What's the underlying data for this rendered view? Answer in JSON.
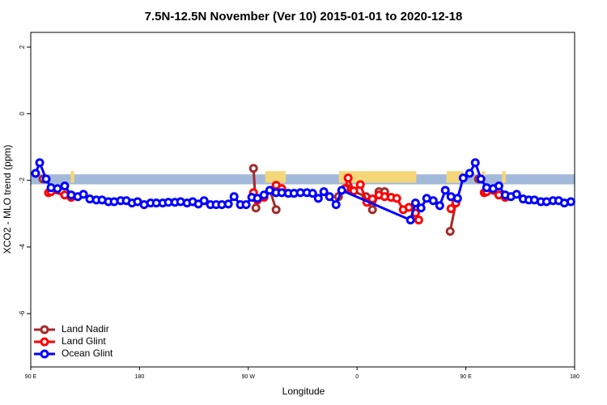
{
  "chart_data": {
    "type": "line",
    "title": "7.5N-12.5N November (Ver 10)   2015-01-01 to 2020-12-18",
    "xlabel": "Longitude",
    "ylabel": "XCO2 - MLO trend (ppm)",
    "xlim": [
      90,
      540
    ],
    "xticks": [
      {
        "value": 90,
        "label": "90 E"
      },
      180,
      {
        "value": 270,
        "label": "90 W"
      },
      {
        "value": 360,
        "label": "0"
      },
      {
        "value": 450,
        "label": "90 E"
      },
      {
        "value": 540,
        "label": "180"
      }
    ],
    "ylim": [
      -7.6,
      2.44
    ],
    "yticks": [
      2,
      0,
      -2,
      -4,
      -6
    ],
    "legend": "lower left",
    "band": {
      "range": [
        -2.12,
        -1.82
      ],
      "color": "#a3b9d9"
    },
    "highlights": {
      "color": "#f5d77a",
      "ranges": [
        [
          123,
          126
        ],
        [
          284,
          301
        ],
        [
          345,
          409
        ],
        [
          434,
          448
        ],
        [
          463,
          466
        ],
        [
          480,
          483
        ]
      ]
    },
    "series": [
      {
        "name": "Land Nadir",
        "color": "#a52a2a",
        "x": [
          100.1,
          null,
          274.3,
          276.3,
          null,
          288.0,
          293.0,
          null,
          344.6,
          352.0,
          367.4,
          372.7,
          378.1,
          382.8,
          null,
          437.0,
          441.7,
          null,
          460.5
        ],
        "values": [
          -1.96,
          null,
          -1.64,
          -2.83,
          null,
          -2.3,
          -2.88,
          null,
          -2.49,
          -2.25,
          -2.49,
          -2.88,
          -2.34,
          -2.34,
          null,
          -3.53,
          -2.68,
          null,
          -1.96
        ]
      },
      {
        "name": "Land Glint",
        "color": "#ff0000",
        "x": [
          104.7,
          106.8,
          118.1,
          123.5,
          null,
          274.3,
          277.6,
          283.0,
          293.0,
          297.7,
          null,
          349.9,
          352.6,
          357.3,
          362.7,
          368.1,
          372.7,
          378.1,
          382.8,
          388.2,
          392.8,
          398.2,
          402.9,
          408.3,
          411.0,
          null,
          437.7,
          441.7,
          null,
          465.2,
          467.2,
          477.3,
          482.6
        ],
        "values": [
          -2.37,
          -2.34,
          -2.44,
          -2.51,
          null,
          -2.37,
          -2.59,
          -2.51,
          -2.15,
          -2.25,
          null,
          -2.25,
          -1.93,
          -2.32,
          -2.13,
          -2.66,
          -2.56,
          -2.44,
          -2.49,
          -2.51,
          -2.54,
          -2.88,
          -2.81,
          -2.98,
          -3.19,
          null,
          -2.85,
          -2.68,
          null,
          -2.37,
          -2.34,
          -2.44,
          -2.51
        ]
      },
      {
        "name": "Ocean Glint",
        "color": "#0000ff",
        "x": [
          94.0,
          97.4,
          102.7,
          106.8,
          112.1,
          118.1,
          123.5,
          128.9,
          133.6,
          138.9,
          144.3,
          149.0,
          154.3,
          159.0,
          164.4,
          169.1,
          173.8,
          178.4,
          183.8,
          189.2,
          193.9,
          199.2,
          203.9,
          209.3,
          214.0,
          219.3,
          224.0,
          228.7,
          233.4,
          238.7,
          243.4,
          248.1,
          253.5,
          258.2,
          263.5,
          268.2,
          272.9,
          277.6,
          283.0,
          287.7,
          293.0,
          297.7,
          303.1,
          307.8,
          313.1,
          318.5,
          323.2,
          327.9,
          332.5,
          337.2,
          342.6,
          347.3,
          404.2,
          408.3,
          412.9,
          417.6,
          423.0,
          428.4,
          433.0,
          437.7,
          443.1,
          447.8,
          453.1,
          457.8,
          462.5,
          467.2,
          472.6,
          477.3,
          482.6,
          487.3,
          492.0,
          497.4,
          502.1,
          506.7,
          512.1,
          516.8,
          522.1,
          526.8,
          531.5,
          536.9
        ],
        "values": [
          -1.79,
          -1.47,
          -1.96,
          -2.22,
          -2.25,
          -2.17,
          -2.44,
          -2.49,
          -2.42,
          -2.56,
          -2.59,
          -2.59,
          -2.64,
          -2.64,
          -2.61,
          -2.61,
          -2.68,
          -2.64,
          -2.73,
          -2.68,
          -2.68,
          -2.68,
          -2.66,
          -2.66,
          -2.64,
          -2.68,
          -2.64,
          -2.71,
          -2.61,
          -2.73,
          -2.73,
          -2.73,
          -2.71,
          -2.49,
          -2.73,
          -2.73,
          -2.51,
          -2.54,
          -2.44,
          -2.3,
          -2.37,
          -2.37,
          -2.39,
          -2.39,
          -2.37,
          -2.37,
          -2.39,
          -2.54,
          -2.34,
          -2.49,
          -2.73,
          -2.3,
          -3.19,
          -2.68,
          -2.83,
          -2.54,
          -2.61,
          -2.76,
          -2.3,
          -2.49,
          -2.54,
          -1.93,
          -1.79,
          -1.47,
          -1.96,
          -2.22,
          -2.25,
          -2.17,
          -2.44,
          -2.49,
          -2.42,
          -2.56,
          -2.59,
          -2.59,
          -2.64,
          -2.64,
          -2.61,
          -2.61,
          -2.68,
          -2.64
        ]
      }
    ]
  }
}
